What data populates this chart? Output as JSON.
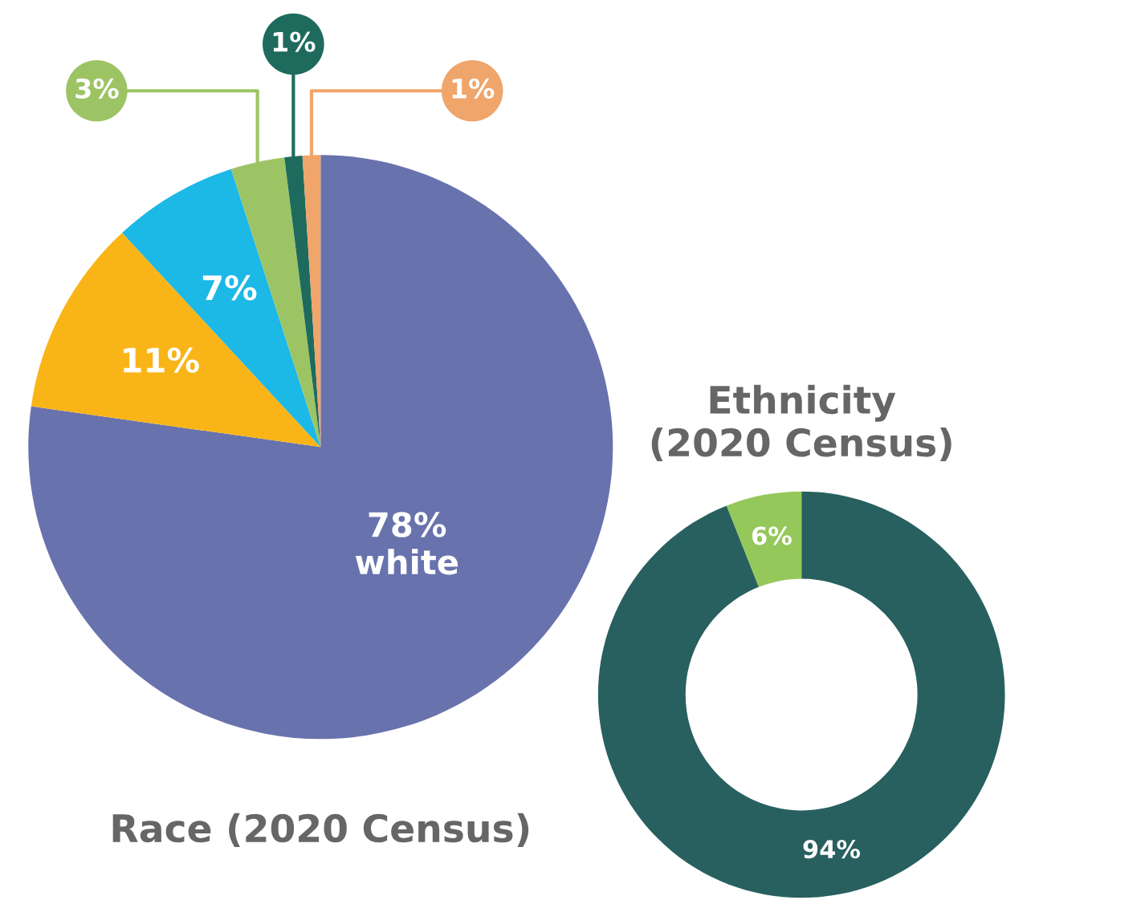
{
  "chart_data": [
    {
      "type": "pie",
      "title": "Race (2020 Census)",
      "categories": [
        "white",
        null,
        null,
        null,
        null,
        null
      ],
      "values": [
        78,
        11,
        7,
        3,
        1,
        1
      ],
      "value_labels": [
        "78%",
        "11%",
        "7%",
        "3%",
        "1%",
        "1%"
      ],
      "colors": [
        "#6872ad",
        "#f9b518",
        "#1cb8e6",
        "#9dc464",
        "#1e6b5e",
        "#f0a56b"
      ]
    },
    {
      "type": "donut",
      "title": "Ethnicity\n(2020 Census)",
      "categories": [
        null,
        null
      ],
      "values": [
        94,
        6
      ],
      "value_labels": [
        "94%",
        "6%"
      ],
      "colors": [
        "#28605f",
        "#94c85a"
      ]
    }
  ]
}
